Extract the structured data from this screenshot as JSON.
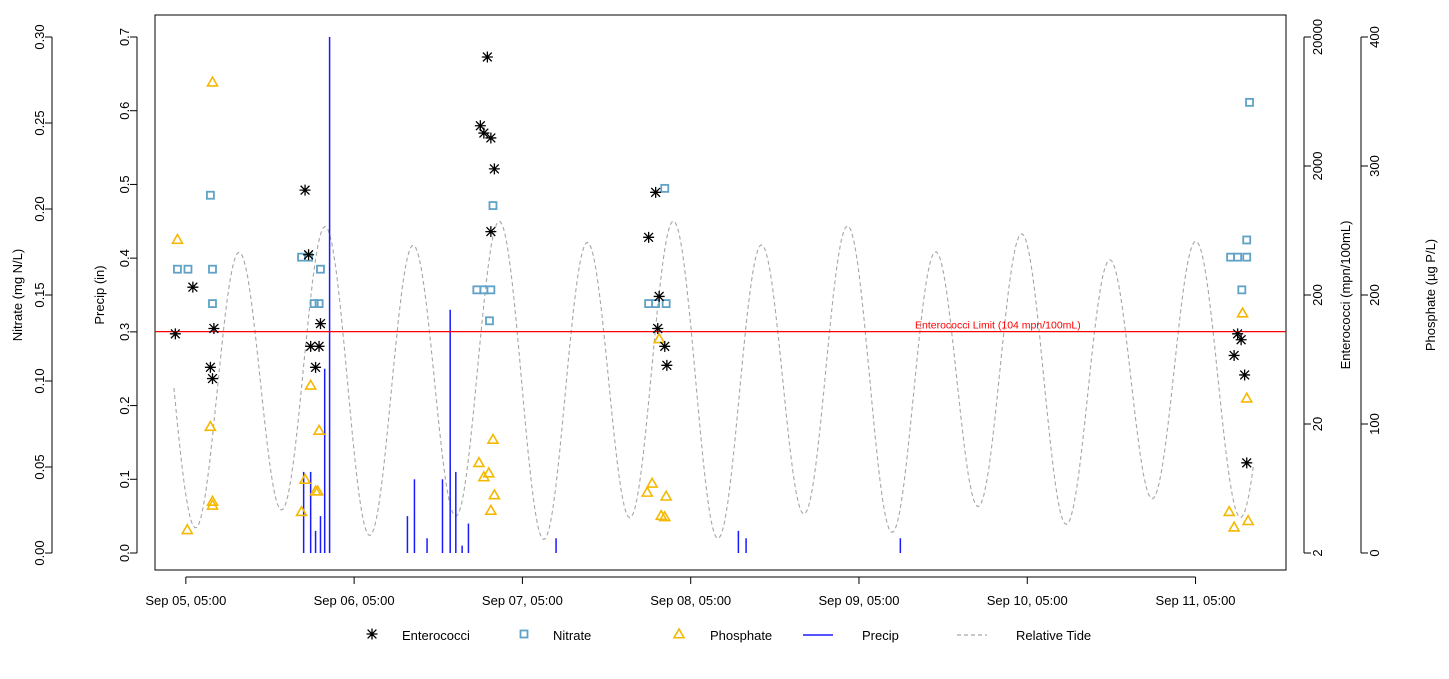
{
  "chart_data": {
    "type": "scatter",
    "colors": {
      "enterococci": "#000000",
      "nitrate": "#5fa2c6",
      "phosphate": "#f5b800",
      "precip": "#1a1aff",
      "tide": "#a6a6a6",
      "limit": "#ff0000"
    },
    "x_axis": {
      "ticks": [
        {
          "t": 0,
          "label": "Sep 05, 05:00"
        },
        {
          "t": 24,
          "label": "Sep 06, 05:00"
        },
        {
          "t": 48,
          "label": "Sep 07, 05:00"
        },
        {
          "t": 72,
          "label": "Sep 08, 05:00"
        },
        {
          "t": 96,
          "label": "Sep 09, 05:00"
        },
        {
          "t": 120,
          "label": "Sep 10, 05:00"
        },
        {
          "t": 144,
          "label": "Sep 11, 05:00"
        }
      ],
      "range": [
        -4.4,
        156.9
      ]
    },
    "axes": {
      "nitrate": {
        "label": "Nitrate (mg N/L)",
        "range": [
          0,
          0.3
        ],
        "ticks": [
          {
            "v": 0,
            "label": "0.00"
          },
          {
            "v": 0.05,
            "label": "0.05"
          },
          {
            "v": 0.1,
            "label": "0.10"
          },
          {
            "v": 0.15,
            "label": "0.15"
          },
          {
            "v": 0.2,
            "label": "0.20"
          },
          {
            "v": 0.25,
            "label": "0.25"
          },
          {
            "v": 0.3,
            "label": "0.30"
          }
        ]
      },
      "precip": {
        "label": "Precip (in)",
        "range": [
          0,
          0.7
        ],
        "ticks": [
          {
            "v": 0,
            "label": "0.0"
          },
          {
            "v": 0.1,
            "label": "0.1"
          },
          {
            "v": 0.2,
            "label": "0.2"
          },
          {
            "v": 0.3,
            "label": "0.3"
          },
          {
            "v": 0.4,
            "label": "0.4"
          },
          {
            "v": 0.5,
            "label": "0.5"
          },
          {
            "v": 0.6,
            "label": "0.6"
          },
          {
            "v": 0.7,
            "label": "0.7"
          }
        ]
      },
      "enterococci": {
        "label": "Enterococci (mpn/100mL)",
        "scale": "log",
        "range": [
          2,
          20000
        ],
        "ticks": [
          {
            "v": 2,
            "label": "2"
          },
          {
            "v": 20,
            "label": "20"
          },
          {
            "v": 200,
            "label": "200"
          },
          {
            "v": 2000,
            "label": "2000"
          },
          {
            "v": 20000,
            "label": "20000"
          }
        ]
      },
      "phosphate": {
        "label": "Phosphate (µg P/L)",
        "range": [
          0,
          400
        ],
        "ticks": [
          {
            "v": 0,
            "label": "0"
          },
          {
            "v": 100,
            "label": "100"
          },
          {
            "v": 200,
            "label": "200"
          },
          {
            "v": 300,
            "label": "300"
          },
          {
            "v": 400,
            "label": "400"
          }
        ]
      }
    },
    "reference_line": {
      "label": "Enterococci Limit (104 mpn/100mL)",
      "value": 104
    },
    "legend": {
      "position": "bottom",
      "items": [
        {
          "key": "enterococci",
          "label": "Enterococci",
          "glyph": "*"
        },
        {
          "key": "nitrate",
          "label": "Nitrate",
          "glyph": "□"
        },
        {
          "key": "phosphate",
          "label": "Phosphate",
          "glyph": "△"
        },
        {
          "key": "precip",
          "label": "Precip",
          "glyph": "—"
        },
        {
          "key": "tide",
          "label": "Relative Tide",
          "glyph": "- -"
        }
      ]
    },
    "enterococci": [
      {
        "t": -1.5,
        "v": 100
      },
      {
        "t": 1,
        "v": 230
      },
      {
        "t": 4,
        "v": 110
      },
      {
        "t": 3.5,
        "v": 55
      },
      {
        "t": 3.8,
        "v": 45
      },
      {
        "t": 17.5,
        "v": 410
      },
      {
        "t": 17,
        "v": 1300
      },
      {
        "t": 17.8,
        "v": 80
      },
      {
        "t": 18.5,
        "v": 55
      },
      {
        "t": 19,
        "v": 80
      },
      {
        "t": 19.2,
        "v": 120
      },
      {
        "t": 42,
        "v": 4100
      },
      {
        "t": 42.5,
        "v": 3600
      },
      {
        "t": 43.5,
        "v": 3300
      },
      {
        "t": 44,
        "v": 1900
      },
      {
        "t": 43.5,
        "v": 620
      },
      {
        "t": 43,
        "v": 14000
      },
      {
        "t": 66,
        "v": 560
      },
      {
        "t": 67,
        "v": 1250
      },
      {
        "t": 67.5,
        "v": 195
      },
      {
        "t": 67.3,
        "v": 110
      },
      {
        "t": 68.3,
        "v": 80
      },
      {
        "t": 68.6,
        "v": 57
      },
      {
        "t": 150,
        "v": 100
      },
      {
        "t": 150.5,
        "v": 90
      },
      {
        "t": 149.5,
        "v": 68
      },
      {
        "t": 151,
        "v": 48
      },
      {
        "t": 151.3,
        "v": 10
      }
    ],
    "nitrate": [
      {
        "t": -1.2,
        "v": 0.165
      },
      {
        "t": 0.3,
        "v": 0.165
      },
      {
        "t": 3.5,
        "v": 0.208
      },
      {
        "t": 3.8,
        "v": 0.165
      },
      {
        "t": 3.8,
        "v": 0.145
      },
      {
        "t": 16.5,
        "v": 0.172
      },
      {
        "t": 17.5,
        "v": 0.172
      },
      {
        "t": 18.3,
        "v": 0.145
      },
      {
        "t": 19,
        "v": 0.145
      },
      {
        "t": 19.2,
        "v": 0.165
      },
      {
        "t": 41.5,
        "v": 0.153
      },
      {
        "t": 42.5,
        "v": 0.153
      },
      {
        "t": 43.5,
        "v": 0.153
      },
      {
        "t": 43.8,
        "v": 0.202
      },
      {
        "t": 43.3,
        "v": 0.135
      },
      {
        "t": 66,
        "v": 0.145
      },
      {
        "t": 67,
        "v": 0.145
      },
      {
        "t": 68.5,
        "v": 0.145
      },
      {
        "t": 68.3,
        "v": 0.212
      },
      {
        "t": 149,
        "v": 0.172
      },
      {
        "t": 150,
        "v": 0.172
      },
      {
        "t": 151.3,
        "v": 0.172
      },
      {
        "t": 150.6,
        "v": 0.153
      },
      {
        "t": 151.3,
        "v": 0.182
      },
      {
        "t": 151.7,
        "v": 0.262
      }
    ],
    "phosphate": [
      {
        "t": -1.2,
        "v": 243
      },
      {
        "t": 0.2,
        "v": 18
      },
      {
        "t": 3.5,
        "v": 98
      },
      {
        "t": 3.8,
        "v": 40
      },
      {
        "t": 3.8,
        "v": 37
      },
      {
        "t": 3.8,
        "v": 365
      },
      {
        "t": 16.5,
        "v": 32
      },
      {
        "t": 17,
        "v": 57
      },
      {
        "t": 17.8,
        "v": 130
      },
      {
        "t": 18.5,
        "v": 48
      },
      {
        "t": 18.8,
        "v": 48
      },
      {
        "t": 19,
        "v": 95
      },
      {
        "t": 41.8,
        "v": 70
      },
      {
        "t": 42.5,
        "v": 59
      },
      {
        "t": 43.2,
        "v": 62
      },
      {
        "t": 43.8,
        "v": 88
      },
      {
        "t": 43.5,
        "v": 33
      },
      {
        "t": 44,
        "v": 45
      },
      {
        "t": 65.8,
        "v": 47
      },
      {
        "t": 66.5,
        "v": 54
      },
      {
        "t": 67.5,
        "v": 166
      },
      {
        "t": 67.8,
        "v": 29
      },
      {
        "t": 68.3,
        "v": 28
      },
      {
        "t": 68.5,
        "v": 44
      },
      {
        "t": 149.5,
        "v": 20
      },
      {
        "t": 148.8,
        "v": 32
      },
      {
        "t": 150.7,
        "v": 186
      },
      {
        "t": 151.3,
        "v": 120
      },
      {
        "t": 151.5,
        "v": 25
      }
    ],
    "precip": [
      {
        "t": 16.8,
        "v": 0.11
      },
      {
        "t": 17.8,
        "v": 0.11
      },
      {
        "t": 18.5,
        "v": 0.03
      },
      {
        "t": 19.2,
        "v": 0.05
      },
      {
        "t": 19.8,
        "v": 0.25
      },
      {
        "t": 20.5,
        "v": 0.7
      },
      {
        "t": 31.6,
        "v": 0.05
      },
      {
        "t": 32.6,
        "v": 0.1
      },
      {
        "t": 34.4,
        "v": 0.02
      },
      {
        "t": 36.6,
        "v": 0.1
      },
      {
        "t": 37.7,
        "v": 0.33
      },
      {
        "t": 38.5,
        "v": 0.11
      },
      {
        "t": 39.4,
        "v": 0.01
      },
      {
        "t": 40.3,
        "v": 0.04
      },
      {
        "t": 52.8,
        "v": 0.02
      },
      {
        "t": 78.8,
        "v": 0.03
      },
      {
        "t": 79.9,
        "v": 0.02
      },
      {
        "t": 101.9,
        "v": 0.02
      }
    ]
  }
}
